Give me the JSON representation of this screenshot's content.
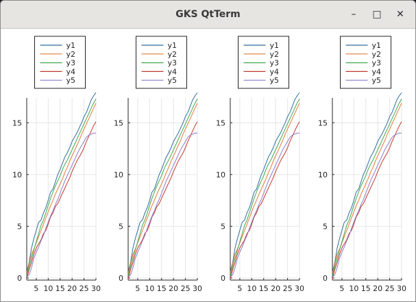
{
  "window": {
    "title": "GKS QtTerm",
    "controls": {
      "minimize": "–",
      "maximize": "□",
      "close": "✕"
    }
  },
  "chart_data": [
    {
      "type": "line",
      "title": "",
      "xlabel": "",
      "ylabel": "",
      "xlim": [
        1,
        30
      ],
      "ylim": [
        -0.2,
        17.4
      ],
      "xticks": [
        5,
        10,
        15,
        20,
        25,
        30
      ],
      "yticks": [
        0,
        5,
        10,
        15
      ],
      "grid": true,
      "legend": "top-center",
      "x": [
        1,
        2,
        3,
        4,
        5,
        6,
        7,
        8,
        9,
        10,
        11,
        12,
        13,
        14,
        15,
        16,
        17,
        18,
        19,
        20,
        21,
        22,
        23,
        24,
        25,
        26,
        27,
        28,
        29,
        30
      ],
      "series": [
        {
          "name": "y1",
          "color": "#2e6b9e",
          "values": [
            0.6,
            1.5,
            2.9,
            3.8,
            4.6,
            5.4,
            5.6,
            6.3,
            6.8,
            7.5,
            8.3,
            8.6,
            9.3,
            10.0,
            10.5,
            11.1,
            11.7,
            12.1,
            12.6,
            13.2,
            13.6,
            14.0,
            14.5,
            15.0,
            15.6,
            16.0,
            16.6,
            17.2,
            17.6,
            17.9
          ]
        },
        {
          "name": "y2",
          "color": "#e07b39",
          "values": [
            0.4,
            1.4,
            2.3,
            2.8,
            3.4,
            4.0,
            4.6,
            5.2,
            5.8,
            6.4,
            7.0,
            7.5,
            8.1,
            8.6,
            9.1,
            9.6,
            10.2,
            10.7,
            11.3,
            11.8,
            12.3,
            12.8,
            13.3,
            13.9,
            14.4,
            14.9,
            15.4,
            15.9,
            16.4,
            16.9
          ]
        },
        {
          "name": "y3",
          "color": "#3ea84a",
          "values": [
            0.2,
            1.1,
            1.9,
            2.7,
            3.5,
            4.3,
            5.1,
            5.6,
            6.3,
            7.0,
            7.7,
            8.3,
            8.9,
            9.4,
            9.9,
            10.5,
            11.0,
            11.4,
            11.9,
            12.4,
            12.9,
            13.4,
            13.9,
            14.4,
            14.9,
            15.4,
            15.9,
            16.4,
            16.9,
            17.3
          ]
        },
        {
          "name": "y4",
          "color": "#c0392b",
          "values": [
            -0.1,
            0.8,
            1.5,
            2.3,
            2.9,
            3.3,
            3.7,
            4.3,
            4.6,
            5.2,
            5.9,
            6.3,
            6.9,
            7.2,
            7.7,
            8.2,
            8.7,
            9.2,
            9.7,
            10.3,
            10.8,
            11.3,
            11.7,
            12.1,
            12.6,
            13.2,
            13.7,
            14.2,
            14.7,
            15.1
          ]
        },
        {
          "name": "y5",
          "color": "#8a7ac9",
          "values": [
            0.1,
            0.3,
            1.0,
            1.9,
            2.5,
            3.0,
            3.6,
            4.1,
            4.8,
            5.4,
            6.0,
            6.5,
            7.1,
            7.6,
            8.2,
            8.8,
            9.4,
            9.9,
            10.4,
            10.9,
            11.4,
            11.9,
            12.4,
            12.8,
            13.2,
            13.6,
            13.8,
            13.9,
            14.0,
            14.0
          ]
        }
      ]
    },
    {
      "type": "line",
      "same_as": 0
    },
    {
      "type": "line",
      "same_as": 0
    },
    {
      "type": "line",
      "same_as": 0
    }
  ]
}
